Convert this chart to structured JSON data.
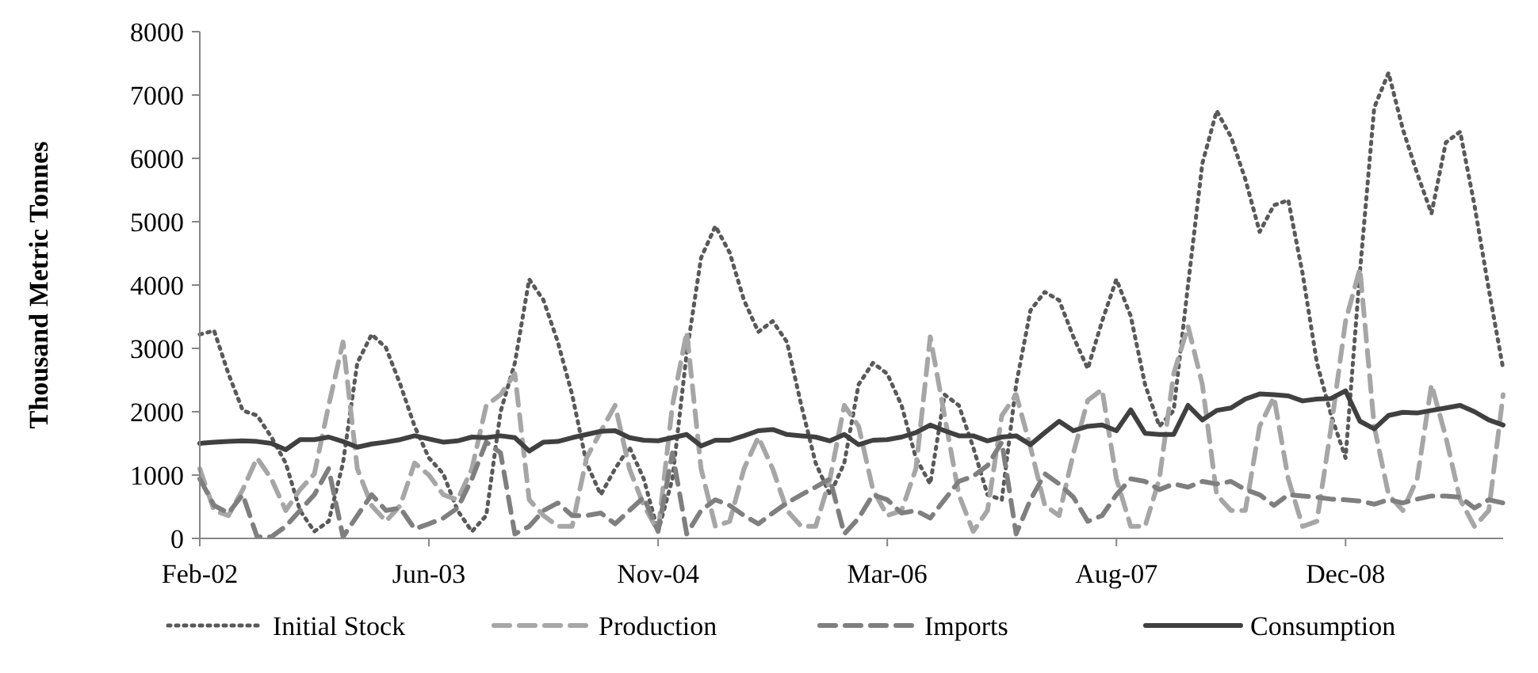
{
  "chart_data": {
    "type": "line",
    "ylabel": "Thousand Metric Tonnes",
    "ylim": [
      0,
      8000
    ],
    "yticks": [
      0,
      1000,
      2000,
      3000,
      4000,
      5000,
      6000,
      7000,
      8000
    ],
    "grid": false,
    "legend": "bottom",
    "marker": "none",
    "categories": [
      "Feb-02",
      null,
      null,
      null,
      null,
      null,
      null,
      null,
      null,
      null,
      null,
      null,
      null,
      null,
      null,
      null,
      "Jun-03",
      null,
      null,
      null,
      null,
      null,
      null,
      null,
      null,
      null,
      null,
      null,
      null,
      null,
      null,
      null,
      "Nov-04",
      null,
      null,
      null,
      null,
      null,
      null,
      null,
      null,
      null,
      null,
      null,
      null,
      null,
      null,
      null,
      "Mar-06",
      null,
      null,
      null,
      null,
      null,
      null,
      null,
      null,
      null,
      null,
      null,
      null,
      null,
      null,
      null,
      "Aug-07",
      null,
      null,
      null,
      null,
      null,
      null,
      null,
      null,
      null,
      null,
      null,
      null,
      null,
      null,
      null,
      "Dec-08",
      null,
      null,
      null,
      null,
      null,
      null,
      null,
      null,
      null,
      null,
      null
    ],
    "series": [
      {
        "name": "Initial Stock",
        "color": "#595959",
        "line_style": "dotted",
        "values": [
          3220,
          3280,
          2600,
          2020,
          1940,
          1600,
          1190,
          440,
          110,
          270,
          1190,
          2770,
          3220,
          3010,
          2430,
          1770,
          1270,
          1020,
          440,
          110,
          360,
          2000,
          2770,
          4090,
          3760,
          3100,
          2270,
          1190,
          690,
          1100,
          1440,
          940,
          110,
          940,
          2930,
          4430,
          4930,
          4510,
          3760,
          3260,
          3430,
          3100,
          2100,
          1190,
          690,
          1190,
          2430,
          2770,
          2600,
          2100,
          1270,
          860,
          2270,
          2100,
          1440,
          690,
          610,
          2430,
          3600,
          3890,
          3760,
          3180,
          2680,
          3430,
          4090,
          3510,
          2430,
          1770,
          2020,
          4000,
          5920,
          6750,
          6340,
          5670,
          4840,
          5260,
          5340,
          4180,
          2770,
          1940,
          1270,
          4200,
          6800,
          7350,
          6460,
          5760,
          5130,
          6250,
          6420,
          5260,
          3930,
          2680
        ]
      },
      {
        "name": "Production",
        "color": "#a6a6a6",
        "line_style": "dashed",
        "values": [
          1100,
          440,
          360,
          770,
          1270,
          940,
          440,
          770,
          1020,
          2100,
          3100,
          1100,
          520,
          270,
          520,
          1190,
          1000,
          690,
          610,
          1100,
          2100,
          2270,
          2600,
          610,
          360,
          190,
          190,
          1270,
          1690,
          2100,
          1100,
          520,
          110,
          2100,
          3260,
          1100,
          190,
          270,
          1100,
          1600,
          1100,
          440,
          190,
          190,
          940,
          2100,
          1770,
          770,
          360,
          440,
          1100,
          3180,
          1940,
          690,
          110,
          440,
          1940,
          2270,
          1440,
          520,
          360,
          1350,
          2180,
          2350,
          940,
          190,
          190,
          940,
          2600,
          3350,
          2430,
          690,
          440,
          440,
          1770,
          2230,
          940,
          190,
          270,
          1770,
          3430,
          4260,
          1770,
          690,
          440,
          940,
          2430,
          1600,
          610,
          190,
          440,
          2270
        ]
      },
      {
        "name": "Imports",
        "color": "#7f7f7f",
        "line_style": "dashed",
        "values": [
          940,
          520,
          400,
          690,
          25,
          25,
          190,
          440,
          690,
          1100,
          25,
          360,
          690,
          440,
          480,
          150,
          230,
          320,
          480,
          940,
          1520,
          1350,
          70,
          190,
          440,
          560,
          360,
          360,
          400,
          230,
          440,
          650,
          110,
          1350,
          70,
          440,
          610,
          520,
          360,
          230,
          400,
          560,
          690,
          810,
          940,
          70,
          320,
          690,
          610,
          400,
          440,
          320,
          610,
          900,
          980,
          1150,
          1520,
          70,
          610,
          1020,
          860,
          650,
          270,
          360,
          690,
          940,
          900,
          770,
          860,
          810,
          900,
          860,
          900,
          770,
          690,
          520,
          690,
          670,
          650,
          620,
          610,
          590,
          540,
          610,
          560,
          620,
          670,
          670,
          650,
          480,
          610,
          560
        ]
      },
      {
        "name": "Consumption",
        "color": "#404040",
        "line_style": "solid",
        "values": [
          1500,
          1520,
          1530,
          1540,
          1530,
          1500,
          1400,
          1560,
          1560,
          1600,
          1530,
          1440,
          1490,
          1520,
          1560,
          1620,
          1570,
          1520,
          1540,
          1600,
          1590,
          1620,
          1590,
          1380,
          1520,
          1530,
          1590,
          1640,
          1690,
          1700,
          1590,
          1550,
          1540,
          1590,
          1640,
          1460,
          1550,
          1550,
          1620,
          1700,
          1720,
          1640,
          1620,
          1600,
          1540,
          1640,
          1480,
          1550,
          1560,
          1600,
          1670,
          1790,
          1700,
          1620,
          1620,
          1540,
          1600,
          1620,
          1480,
          1670,
          1850,
          1700,
          1770,
          1790,
          1700,
          2030,
          1660,
          1640,
          1640,
          2100,
          1870,
          2020,
          2060,
          2200,
          2280,
          2270,
          2250,
          2170,
          2200,
          2210,
          2330,
          1850,
          1730,
          1940,
          1990,
          1980,
          2020,
          2060,
          2100,
          2000,
          1870,
          1790
        ]
      }
    ]
  }
}
